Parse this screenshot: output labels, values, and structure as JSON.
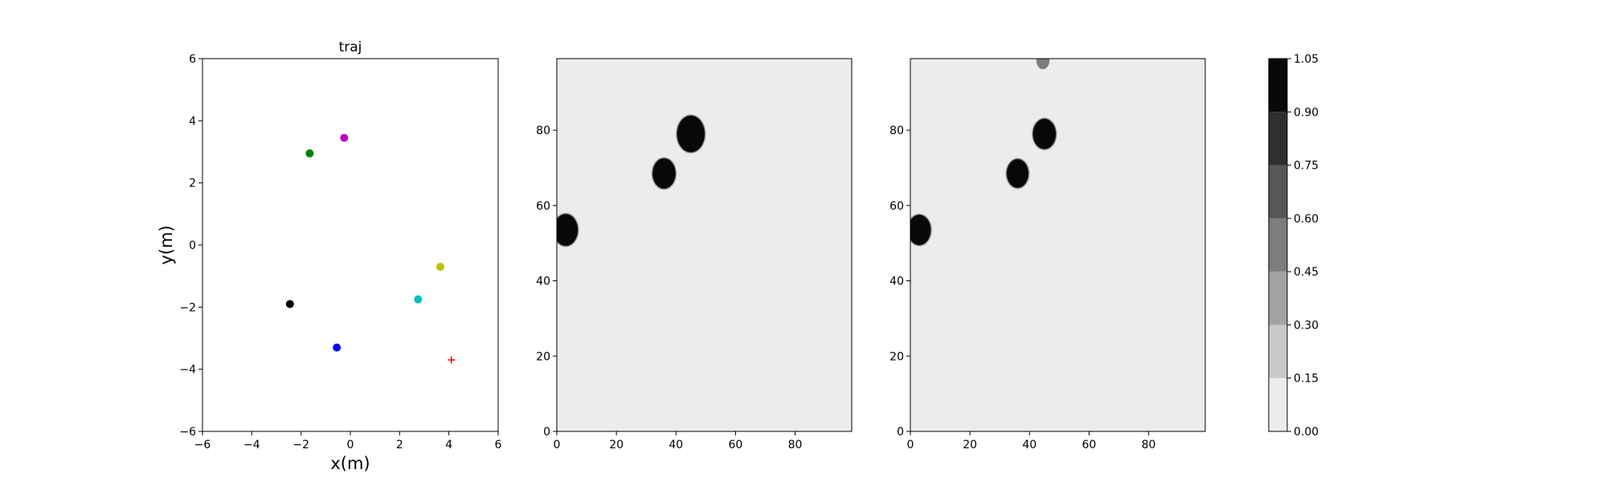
{
  "chart_data": [
    {
      "type": "scatter",
      "title": "traj",
      "xlabel": "x(m)",
      "ylabel": "y(m)",
      "xlim": [
        -6,
        6
      ],
      "ylim": [
        -6,
        6
      ],
      "xticks": [
        -6,
        -4,
        -2,
        0,
        2,
        4,
        6
      ],
      "yticks": [
        -6,
        -4,
        -2,
        0,
        2,
        4,
        6
      ],
      "tick_labels_x": [
        "−6",
        "−4",
        "−2",
        "0",
        "2",
        "4",
        "6"
      ],
      "tick_labels_y": [
        "−6",
        "−4",
        "−2",
        "0",
        "2",
        "4",
        "6"
      ],
      "grid": false,
      "points": [
        {
          "x": -1.65,
          "y": 2.95,
          "color": "#008000",
          "marker": "circle"
        },
        {
          "x": -0.25,
          "y": 3.45,
          "color": "#bf00bf",
          "marker": "circle"
        },
        {
          "x": 3.65,
          "y": -0.7,
          "color": "#bfbf00",
          "marker": "circle"
        },
        {
          "x": 2.75,
          "y": -1.75,
          "color": "#00bfbf",
          "marker": "circle"
        },
        {
          "x": -2.45,
          "y": -1.9,
          "color": "#000000",
          "marker": "circle"
        },
        {
          "x": -0.55,
          "y": -3.3,
          "color": "#0000ff",
          "marker": "circle"
        },
        {
          "x": 4.1,
          "y": -3.7,
          "color": "#ff0000",
          "marker": "plus"
        }
      ]
    },
    {
      "type": "heatmap",
      "title": "",
      "xlim": [
        0,
        99
      ],
      "ylim": [
        0,
        99
      ],
      "xticks": [
        0,
        20,
        40,
        60,
        80
      ],
      "yticks": [
        0,
        20,
        40,
        60,
        80
      ],
      "tick_labels_x": [
        "0",
        "20",
        "40",
        "60",
        "80"
      ],
      "tick_labels_y": [
        "0",
        "20",
        "40",
        "60",
        "80"
      ],
      "background_value": 0.05,
      "blobs": [
        {
          "x": 45,
          "y": 79,
          "r": 4.6,
          "value": 1.0
        },
        {
          "x": 36,
          "y": 68.5,
          "r": 3.8,
          "value": 1.0
        },
        {
          "x": 3,
          "y": 53.5,
          "r": 4.0,
          "value": 1.0
        }
      ]
    },
    {
      "type": "heatmap",
      "title": "",
      "xlim": [
        0,
        99
      ],
      "ylim": [
        0,
        99
      ],
      "xticks": [
        0,
        20,
        40,
        60,
        80
      ],
      "yticks": [
        0,
        20,
        40,
        60,
        80
      ],
      "tick_labels_x": [
        "0",
        "20",
        "40",
        "60",
        "80"
      ],
      "tick_labels_y": [
        "0",
        "20",
        "40",
        "60",
        "80"
      ],
      "background_value": 0.05,
      "blobs": [
        {
          "x": 45,
          "y": 79,
          "r": 3.8,
          "value": 1.0
        },
        {
          "x": 36,
          "y": 68.5,
          "r": 3.6,
          "value": 1.0
        },
        {
          "x": 3,
          "y": 53.5,
          "r": 3.8,
          "value": 1.0
        },
        {
          "x": 44.5,
          "y": 98.5,
          "r": 2.2,
          "value": 0.55
        }
      ]
    }
  ],
  "colorbar": {
    "levels": [
      0.0,
      0.15,
      0.3,
      0.45,
      0.6,
      0.75,
      0.9,
      1.05
    ],
    "tick_labels": [
      "0.00",
      "0.15",
      "0.30",
      "0.45",
      "0.60",
      "0.75",
      "0.90",
      "1.05"
    ],
    "colors": [
      "#ececec",
      "#c9c9c9",
      "#a3a3a3",
      "#7d7d7d",
      "#575757",
      "#2f2f2f",
      "#080808"
    ]
  }
}
